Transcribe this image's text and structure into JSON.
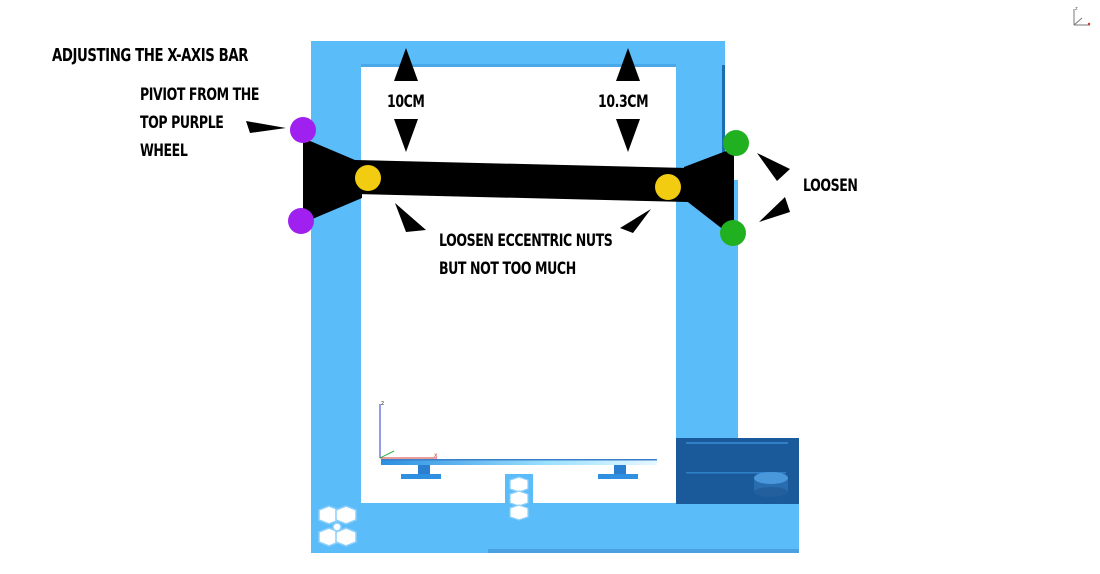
{
  "title": "Adjusting the X-axis bar",
  "pivot_note": "Piviot from the\ntop purple\nwheel",
  "measurement_left": "10cm",
  "measurement_right": "10.3cm",
  "loosen_note": "Loosen",
  "eccentric_note": "Loosen  eccentric nuts\nbut not too much",
  "axis_labels": {
    "z": "z",
    "x": "x"
  },
  "colors": {
    "frame": "#5bbcfa",
    "frame_dark": "#1a5a9a",
    "bar": "#000000",
    "pivot_wheel": "#a020f0",
    "eccentric_nut": "#f2cc10",
    "loosen_wheel": "#20b020"
  }
}
